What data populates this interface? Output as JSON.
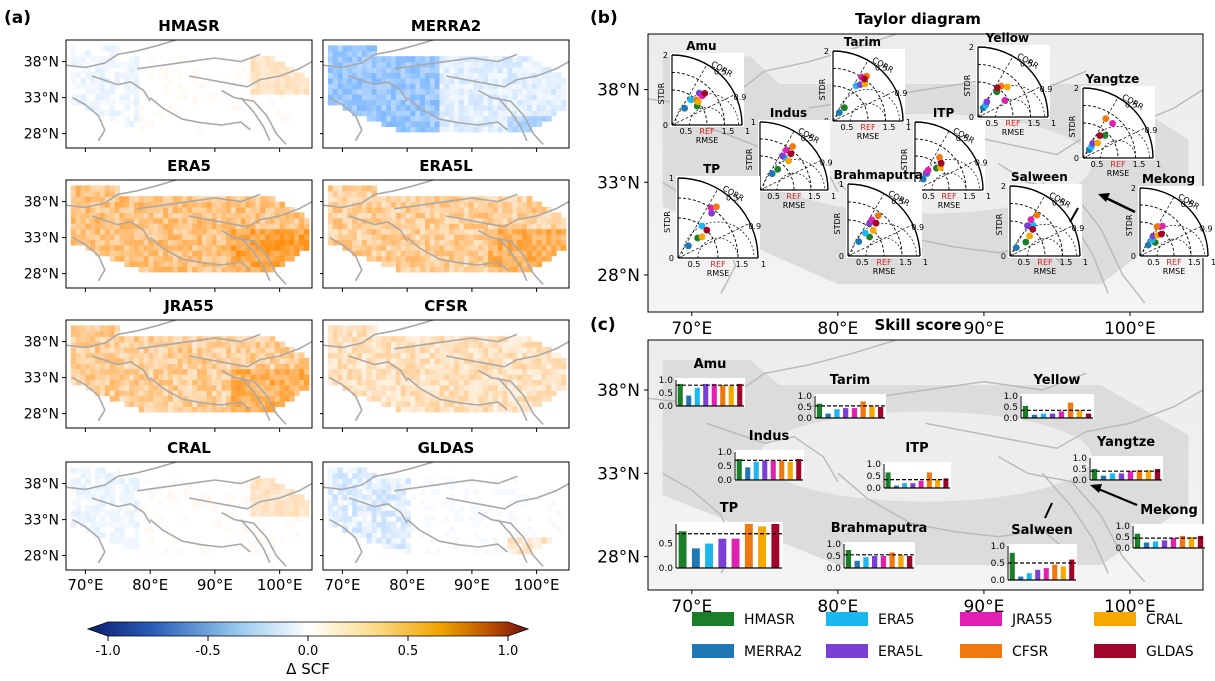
{
  "panel_labels": {
    "a": "(a)",
    "b": "(b)",
    "c": "(c)"
  },
  "maps_a": {
    "lat_ticks": [
      "38°N",
      "33°N",
      "28°N"
    ],
    "lon_ticks": [
      "70°E",
      "80°E",
      "90°E",
      "100°E"
    ],
    "panels": [
      {
        "title": "HMASR",
        "mean_dscf": 0.05,
        "pattern": "weak"
      },
      {
        "title": "MERRA2",
        "mean_dscf": -0.15,
        "pattern": "west-negative"
      },
      {
        "title": "ERA5",
        "mean_dscf": 0.5,
        "pattern": "strong"
      },
      {
        "title": "ERA5L",
        "mean_dscf": 0.4,
        "pattern": "strong"
      },
      {
        "title": "JRA55",
        "mean_dscf": 0.4,
        "pattern": "strong"
      },
      {
        "title": "CFSR",
        "mean_dscf": 0.25,
        "pattern": "moderate"
      },
      {
        "title": "CRAL",
        "mean_dscf": 0.05,
        "pattern": "weak"
      },
      {
        "title": "GLDAS",
        "mean_dscf": -0.05,
        "pattern": "weak-negative"
      }
    ]
  },
  "colorbar": {
    "label": "Δ SCF",
    "ticks": [
      "-1.0",
      "-0.5",
      "0.0",
      "0.5",
      "1.0"
    ],
    "range": [
      -1,
      1
    ],
    "colors": [
      "#0b1c6e",
      "#3a7fd0",
      "#bfe0f7",
      "#ffffff",
      "#fbe3a0",
      "#f4b000",
      "#c25a00",
      "#6e0d0d"
    ]
  },
  "panel_b": {
    "title": "Taylor diagram",
    "lat_ticks": [
      "38°N",
      "33°N",
      "28°N"
    ],
    "lon_ticks": [
      "70°E",
      "80°E",
      "90°E",
      "100°E"
    ],
    "axis_labels": {
      "stdr": "STDR",
      "corr": "CORR",
      "rmse": "RMSE",
      "ref": "REF"
    },
    "tick_labels": {
      "t0": "0",
      "t05": "0.5",
      "t09": "0.9",
      "t1": "1",
      "t15": "1.5",
      "t2": "2"
    },
    "arrow": "Mekong"
  },
  "panel_c": {
    "title": "Skill score",
    "lat_ticks": [
      "38°N",
      "33°N",
      "28°N"
    ],
    "lon_ticks": [
      "70°E",
      "80°E",
      "90°E",
      "100°E"
    ]
  },
  "legend": {
    "items": [
      {
        "name": "HMASR",
        "color": "#1b7f2a"
      },
      {
        "name": "MERRA2",
        "color": "#1f77b4"
      },
      {
        "name": "ERA5",
        "color": "#1ab8ee"
      },
      {
        "name": "ERA5L",
        "color": "#7b3fd6"
      },
      {
        "name": "JRA55",
        "color": "#e020b0"
      },
      {
        "name": "CFSR",
        "color": "#f07810"
      },
      {
        "name": "CRAL",
        "color": "#f4a800"
      },
      {
        "name": "GLDAS",
        "color": "#a0062a"
      }
    ]
  },
  "chart_data": [
    {
      "type": "scatter",
      "title": "Taylor diagram",
      "xlabel": "STDR",
      "ylabel": "STDR",
      "series_order": [
        "HMASR",
        "MERRA2",
        "ERA5",
        "ERA5L",
        "JRA55",
        "CFSR",
        "CRAL",
        "GLDAS"
      ],
      "regions": [
        {
          "name": "Amu",
          "stdr_max": 2,
          "points": [
            {
              "stdr": 0.9,
              "corr": 0.8
            },
            {
              "stdr": 0.6,
              "corr": 0.6
            },
            {
              "stdr": 0.9,
              "corr": 0.6
            },
            {
              "stdr": 1.2,
              "corr": 0.65
            },
            {
              "stdr": 1.2,
              "corr": 0.72
            },
            {
              "stdr": 1.0,
              "corr": 0.7
            },
            {
              "stdr": 1.0,
              "corr": 0.75
            },
            {
              "stdr": 1.3,
              "corr": 0.72
            }
          ]
        },
        {
          "name": "Tarim",
          "stdr_max": 2,
          "points": [
            {
              "stdr": 0.5,
              "corr": 0.65
            },
            {
              "stdr": 0.3,
              "corr": 0.6
            },
            {
              "stdr": 1.2,
              "corr": 0.55
            },
            {
              "stdr": 1.3,
              "corr": 0.6
            },
            {
              "stdr": 1.5,
              "corr": 0.55
            },
            {
              "stdr": 1.6,
              "corr": 0.6
            },
            {
              "stdr": 1.4,
              "corr": 0.65
            },
            {
              "stdr": 1.5,
              "corr": 0.6
            }
          ]
        },
        {
          "name": "Yellow",
          "stdr_max": 2,
          "points": [
            {
              "stdr": 0.9,
              "corr": 0.6
            },
            {
              "stdr": 0.3,
              "corr": 0.5
            },
            {
              "stdr": 0.4,
              "corr": 0.55
            },
            {
              "stdr": 0.5,
              "corr": 0.5
            },
            {
              "stdr": 0.9,
              "corr": 0.85
            },
            {
              "stdr": 1.1,
              "corr": 0.6
            },
            {
              "stdr": 1.2,
              "corr": 0.7
            },
            {
              "stdr": 1.0,
              "corr": 0.55
            }
          ]
        },
        {
          "name": "Yangtze",
          "stdr_max": 2,
          "points": [
            {
              "stdr": 0.9,
              "corr": 0.7
            },
            {
              "stdr": 0.3,
              "corr": 0.6
            },
            {
              "stdr": 0.4,
              "corr": 0.6
            },
            {
              "stdr": 0.5,
              "corr": 0.55
            },
            {
              "stdr": 1.3,
              "corr": 0.65
            },
            {
              "stdr": 1.3,
              "corr": 0.5
            },
            {
              "stdr": 0.6,
              "corr": 0.7
            },
            {
              "stdr": 0.8,
              "corr": 0.6
            }
          ]
        },
        {
          "name": "Indus",
          "stdr_max": 1,
          "points": [
            {
              "stdr": 0.4,
              "corr": 0.65
            },
            {
              "stdr": 0.3,
              "corr": 0.6
            },
            {
              "stdr": 0.6,
              "corr": 0.6
            },
            {
              "stdr": 0.6,
              "corr": 0.55
            },
            {
              "stdr": 0.7,
              "corr": 0.55
            },
            {
              "stdr": 0.8,
              "corr": 0.6
            },
            {
              "stdr": 0.6,
              "corr": 0.7
            },
            {
              "stdr": 0.7,
              "corr": 0.65
            }
          ]
        },
        {
          "name": "ITP",
          "stdr_max": 1,
          "points": [
            {
              "stdr": 0.45,
              "corr": 0.7
            },
            {
              "stdr": 0.2,
              "corr": 0.6
            },
            {
              "stdr": 0.3,
              "corr": 0.6
            },
            {
              "stdr": 0.3,
              "corr": 0.55
            },
            {
              "stdr": 0.35,
              "corr": 0.55
            },
            {
              "stdr": 0.6,
              "corr": 0.6
            },
            {
              "stdr": 0.5,
              "corr": 0.75
            },
            {
              "stdr": 0.55,
              "corr": 0.7
            }
          ]
        },
        {
          "name": "TP",
          "stdr_max": 1,
          "points": [
            {
              "stdr": 0.35,
              "corr": 0.7
            },
            {
              "stdr": 0.2,
              "corr": 0.65
            },
            {
              "stdr": 0.5,
              "corr": 0.6
            },
            {
              "stdr": 0.7,
              "corr": 0.6
            },
            {
              "stdr": 0.75,
              "corr": 0.55
            },
            {
              "stdr": 0.8,
              "corr": 0.6
            },
            {
              "stdr": 0.4,
              "corr": 0.75
            },
            {
              "stdr": 0.5,
              "corr": 0.72
            }
          ]
        },
        {
          "name": "Brahmaputra",
          "stdr_max": 1,
          "points": [
            {
              "stdr": 0.4,
              "corr": 0.75
            },
            {
              "stdr": 0.25,
              "corr": 0.6
            },
            {
              "stdr": 0.4,
              "corr": 0.6
            },
            {
              "stdr": 0.55,
              "corr": 0.55
            },
            {
              "stdr": 0.6,
              "corr": 0.55
            },
            {
              "stdr": 0.7,
              "corr": 0.6
            },
            {
              "stdr": 0.5,
              "corr": 0.7
            },
            {
              "stdr": 0.6,
              "corr": 0.65
            }
          ]
        },
        {
          "name": "Salween",
          "stdr_max": 2,
          "points": [
            {
              "stdr": 0.6,
              "corr": 0.75
            },
            {
              "stdr": 0.3,
              "corr": 0.6
            },
            {
              "stdr": 1.1,
              "corr": 0.6
            },
            {
              "stdr": 1.0,
              "corr": 0.5
            },
            {
              "stdr": 1.2,
              "corr": 0.5
            },
            {
              "stdr": 1.4,
              "corr": 0.55
            },
            {
              "stdr": 0.8,
              "corr": 0.7
            },
            {
              "stdr": 1.0,
              "corr": 0.65
            }
          ]
        },
        {
          "name": "Mekong",
          "stdr_max": 2,
          "points": [
            {
              "stdr": 0.6,
              "corr": 0.75
            },
            {
              "stdr": 0.4,
              "corr": 0.6
            },
            {
              "stdr": 0.6,
              "corr": 0.6
            },
            {
              "stdr": 0.7,
              "corr": 0.55
            },
            {
              "stdr": 1.1,
              "corr": 0.6
            },
            {
              "stdr": 1.0,
              "corr": 0.5
            },
            {
              "stdr": 0.8,
              "corr": 0.65
            },
            {
              "stdr": 0.9,
              "corr": 0.7
            }
          ]
        }
      ]
    },
    {
      "type": "bar",
      "title": "Skill score",
      "categories": [
        "HMASR",
        "MERRA2",
        "ERA5",
        "ERA5L",
        "JRA55",
        "CFSR",
        "CRAL",
        "GLDAS"
      ],
      "regions": [
        {
          "name": "Amu",
          "ticks": [
            "1.0",
            "0.5",
            "0.0"
          ],
          "ylim": [
            0,
            1
          ],
          "ref": 0.8,
          "values": [
            0.85,
            0.4,
            0.7,
            0.85,
            0.85,
            0.8,
            0.8,
            0.85
          ]
        },
        {
          "name": "Tarim",
          "ticks": [
            "1.0",
            "0.5",
            "0.0"
          ],
          "ylim": [
            0,
            1
          ],
          "ref": 0.55,
          "values": [
            0.65,
            0.2,
            0.4,
            0.45,
            0.45,
            0.75,
            0.55,
            0.5
          ]
        },
        {
          "name": "Yellow",
          "ticks": [
            "1.0",
            "0.5",
            "0.0"
          ],
          "ylim": [
            0,
            1
          ],
          "ref": 0.35,
          "values": [
            0.55,
            0.15,
            0.2,
            0.2,
            0.3,
            0.7,
            0.35,
            0.2
          ]
        },
        {
          "name": "Indus",
          "ticks": [
            "1.0",
            "0.5",
            "0.0"
          ],
          "ylim": [
            0,
            1
          ],
          "ref": 0.7,
          "values": [
            0.75,
            0.45,
            0.65,
            0.7,
            0.7,
            0.7,
            0.65,
            0.75
          ]
        },
        {
          "name": "ITP",
          "ticks": [
            "1.0",
            "0.5",
            "0.0"
          ],
          "ylim": [
            0,
            1
          ],
          "ref": 0.35,
          "values": [
            0.65,
            0.1,
            0.2,
            0.2,
            0.3,
            0.65,
            0.35,
            0.4
          ]
        },
        {
          "name": "Yangtze",
          "ticks": [
            "1.0",
            "0.5",
            "0.0"
          ],
          "ylim": [
            0,
            1
          ],
          "ref": 0.4,
          "values": [
            0.5,
            0.2,
            0.3,
            0.3,
            0.4,
            0.45,
            0.45,
            0.5
          ]
        },
        {
          "name": "TP",
          "ticks": [
            "0.5",
            "0.0"
          ],
          "ylim": [
            0,
            0.9
          ],
          "ref": 0.7,
          "values": [
            0.75,
            0.4,
            0.5,
            0.6,
            0.6,
            0.9,
            0.85,
            0.9
          ]
        },
        {
          "name": "Brahmaputra",
          "ticks": [
            "1.0",
            "0.5",
            "0.0"
          ],
          "ylim": [
            0,
            1
          ],
          "ref": 0.55,
          "values": [
            0.75,
            0.3,
            0.45,
            0.5,
            0.5,
            0.65,
            0.55,
            0.5
          ]
        },
        {
          "name": "Salween",
          "ticks": [
            "1.0",
            "0.5",
            "0.0"
          ],
          "ylim": [
            0,
            1
          ],
          "ref": 0.5,
          "values": [
            0.8,
            0.1,
            0.2,
            0.3,
            0.35,
            0.45,
            0.4,
            0.6
          ]
        },
        {
          "name": "Mekong",
          "ticks": [
            "1.0",
            "0.5",
            "0.0"
          ],
          "ylim": [
            0,
            1
          ],
          "ref": 0.45,
          "values": [
            0.65,
            0.25,
            0.3,
            0.35,
            0.45,
            0.55,
            0.5,
            0.55
          ]
        }
      ]
    }
  ]
}
